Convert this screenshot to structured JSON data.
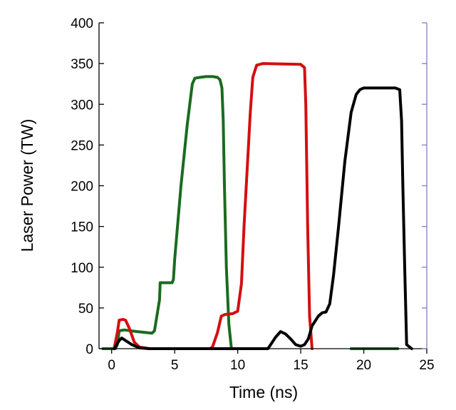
{
  "chart_data": {
    "type": "line",
    "title": "",
    "xlabel": "Time (ns)",
    "ylabel": "Laser Power (TW)",
    "xlim": [
      -1,
      25
    ],
    "ylim": [
      0,
      400
    ],
    "xticks": [
      0,
      5,
      10,
      15,
      20,
      25
    ],
    "yticks": [
      0,
      50,
      100,
      150,
      200,
      250,
      300,
      350,
      400
    ],
    "grid": false,
    "legend": "none",
    "axis_color": "#000000",
    "minor_tick_color": "#8080c0",
    "series": [
      {
        "color": "#1a6b1f",
        "x": [
          -0.7,
          0.3,
          0.45,
          0.6,
          1.0,
          2.0,
          3.2,
          3.4,
          3.8,
          3.85,
          4.8,
          4.9,
          5.0,
          5.5,
          6.0,
          6.4,
          6.6,
          7.0,
          7.5,
          8.0,
          8.4,
          8.6,
          8.75,
          8.85,
          8.95,
          9.1,
          9.3,
          9.5,
          10.0,
          11.5
        ],
        "y": [
          0,
          0,
          5,
          22,
          23,
          21,
          19,
          22,
          60,
          81,
          81,
          85,
          110,
          200,
          275,
          325,
          332,
          333,
          334,
          334,
          333,
          330,
          320,
          280,
          200,
          100,
          30,
          0,
          0,
          0
        ]
      },
      {
        "color": "#1a6b1f",
        "x": [
          19.0,
          22.7
        ],
        "y": [
          0,
          0
        ]
      },
      {
        "color": "#d40f0f",
        "x": [
          0.2,
          0.45,
          0.6,
          0.9,
          1.1,
          1.4,
          1.8,
          2.2,
          3.0,
          7.8,
          8.0,
          8.4,
          8.7,
          9.0,
          9.6,
          10.0,
          10.3,
          10.5,
          11.0,
          11.2,
          11.5,
          12.0,
          15.0,
          15.3,
          15.4,
          15.55,
          15.7,
          15.9
        ],
        "y": [
          0,
          20,
          35,
          36,
          35,
          25,
          8,
          2,
          0,
          0,
          2,
          20,
          40,
          42,
          43,
          46,
          80,
          150,
          290,
          333,
          348,
          350,
          349,
          345,
          300,
          150,
          40,
          0
        ]
      },
      {
        "color": "#000000",
        "x": [
          0.2,
          0.6,
          0.8,
          1.1,
          1.6,
          2.2,
          3.0,
          12.4,
          13.0,
          13.4,
          13.8,
          14.2,
          14.6,
          15.0,
          15.3,
          15.6,
          15.9,
          16.4,
          16.7,
          17.0,
          17.3,
          17.6,
          18.0,
          18.5,
          19.0,
          19.4,
          19.7,
          20.0,
          20.5,
          21.0,
          22.5,
          22.85,
          23.0,
          23.1,
          23.25,
          23.4,
          23.8
        ],
        "y": [
          0,
          10,
          13,
          10,
          5,
          1,
          0,
          0,
          14,
          21,
          18,
          12,
          5,
          3,
          5,
          12,
          28,
          40,
          44,
          45,
          55,
          90,
          150,
          230,
          290,
          312,
          318,
          320,
          320,
          320,
          320,
          318,
          280,
          200,
          100,
          5,
          0
        ]
      }
    ]
  }
}
